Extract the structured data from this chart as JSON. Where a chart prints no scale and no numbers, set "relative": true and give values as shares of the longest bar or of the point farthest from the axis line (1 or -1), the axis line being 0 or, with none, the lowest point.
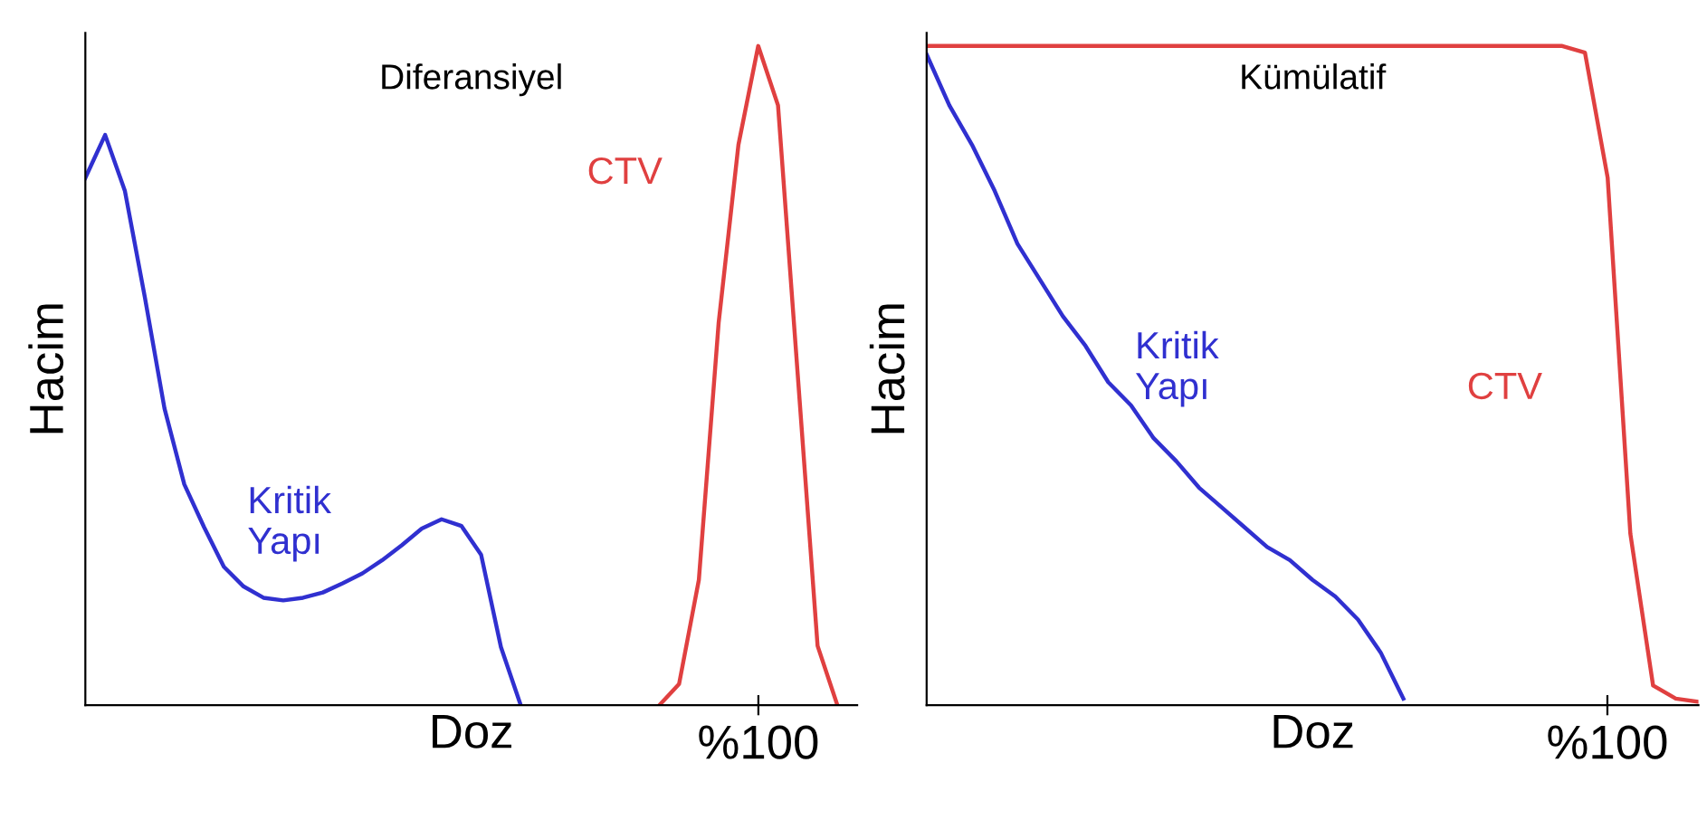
{
  "chart_data": [
    {
      "type": "line",
      "title": "Diferansiyel",
      "xlabel": "Doz",
      "ylabel": "Hacim",
      "relative": true,
      "categories": [
        null,
        null,
        null,
        null,
        null,
        null,
        null,
        null,
        null,
        null,
        null,
        null,
        null,
        null,
        null,
        null,
        null,
        null,
        null,
        null,
        null,
        null,
        null,
        null,
        null,
        null,
        null,
        null,
        null,
        null,
        null,
        null,
        null,
        null,
        null,
        null,
        null,
        null,
        null,
        null
      ],
      "annotations": [
        "%100"
      ],
      "series": [
        {
          "name": "Kritik\nYapı",
          "color": "#3030d0",
          "values": [
            0.8,
            0.865,
            0.78,
            0.62,
            0.45,
            0.335,
            0.27,
            0.21,
            0.18,
            0.163,
            0.159,
            0.163,
            0.171,
            0.185,
            0.2,
            0.22,
            0.243,
            0.268,
            0.282,
            0.272,
            0.228,
            0.088,
            0,
            null,
            null,
            null,
            null,
            null,
            null,
            null,
            null,
            null,
            null,
            null,
            null,
            null,
            null,
            null,
            null,
            null
          ]
        },
        {
          "name": "CTV",
          "color": "#e04040",
          "values": [
            null,
            null,
            null,
            null,
            null,
            null,
            null,
            null,
            null,
            null,
            null,
            null,
            null,
            null,
            null,
            null,
            null,
            null,
            null,
            null,
            null,
            null,
            null,
            null,
            null,
            null,
            null,
            null,
            null,
            0,
            0.032,
            0.19,
            0.58,
            0.85,
            1.0,
            0.91,
            0.5,
            0.09,
            0,
            null
          ]
        }
      ]
    },
    {
      "type": "line",
      "title": "Kümülatif",
      "xlabel": "Doz",
      "ylabel": "Hacim",
      "relative": true,
      "categories": [
        null,
        null,
        null,
        null,
        null,
        null,
        null,
        null,
        null,
        null,
        null,
        null,
        null,
        null,
        null,
        null,
        null,
        null,
        null,
        null,
        null,
        null,
        null,
        null,
        null,
        null,
        null,
        null,
        null,
        null,
        null,
        null,
        null,
        null,
        null
      ],
      "annotations": [
        "%100"
      ],
      "series": [
        {
          "name": "Kritik\nYapı",
          "color": "#3030d0",
          "values": [
            0.987,
            0.91,
            0.85,
            0.78,
            0.7,
            0.645,
            0.59,
            0.545,
            0.49,
            0.455,
            0.405,
            0.37,
            0.33,
            0.3,
            0.27,
            0.24,
            0.22,
            0.19,
            0.165,
            0.13,
            0.08,
            0.01,
            null,
            null,
            null,
            null,
            null,
            null,
            null,
            null,
            null,
            null,
            null,
            null,
            null
          ]
        },
        {
          "name": "CTV",
          "color": "#e04040",
          "values": [
            1,
            1,
            1,
            1,
            1,
            1,
            1,
            1,
            1,
            1,
            1,
            1,
            1,
            1,
            1,
            1,
            1,
            1,
            1,
            1,
            1,
            1,
            1,
            1,
            1,
            1,
            1,
            1,
            1,
            0.99,
            0.8,
            0.26,
            0.03,
            0.01,
            0.005
          ]
        }
      ]
    }
  ]
}
